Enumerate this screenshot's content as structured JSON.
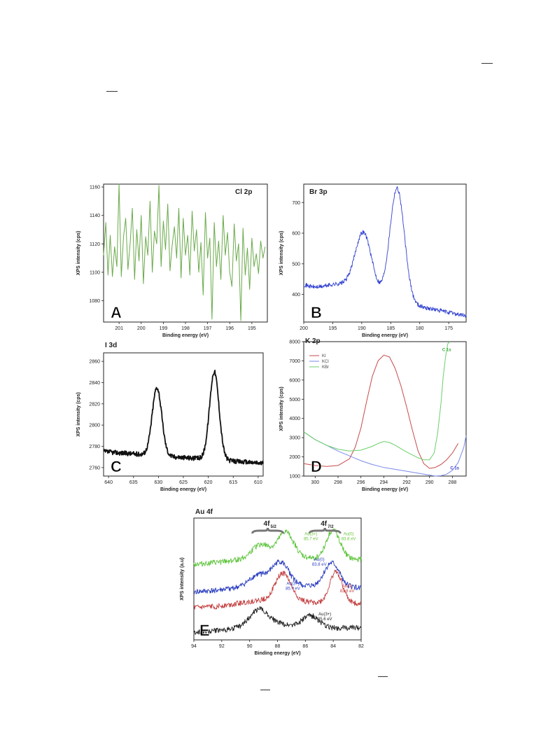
{
  "chart_data": [
    {
      "id": "A",
      "type": "line",
      "title": "Cl 2p",
      "panel_letter": "A",
      "xlabel": "Binding energy (eV)",
      "ylabel": "XPS intensity (cps)",
      "xlim": [
        201.7,
        194.3
      ],
      "ylim": [
        1065,
        1162
      ],
      "xticks": [
        201,
        200,
        199,
        198,
        197,
        196,
        195
      ],
      "yticks": [
        1080,
        1100,
        1120,
        1140,
        1160
      ],
      "series": [
        {
          "color": "#6aaa4a",
          "x": [
            201.7,
            201.6,
            201.5,
            201.4,
            201.3,
            201.2,
            201.1,
            201.0,
            200.9,
            200.8,
            200.7,
            200.6,
            200.5,
            200.4,
            200.3,
            200.2,
            200.1,
            200.0,
            199.9,
            199.8,
            199.7,
            199.6,
            199.5,
            199.4,
            199.3,
            199.2,
            199.1,
            199.0,
            198.9,
            198.8,
            198.7,
            198.6,
            198.5,
            198.4,
            198.3,
            198.2,
            198.1,
            198.0,
            197.9,
            197.8,
            197.7,
            197.6,
            197.5,
            197.4,
            197.3,
            197.2,
            197.1,
            197.0,
            196.9,
            196.8,
            196.7,
            196.6,
            196.5,
            196.4,
            196.3,
            196.2,
            196.1,
            196.0,
            195.9,
            195.8,
            195.7,
            195.6,
            195.5,
            195.4,
            195.3,
            195.2,
            195.1,
            195.0,
            194.9,
            194.8,
            194.7,
            194.6,
            194.5,
            194.4
          ],
          "values": [
            1112,
            1135,
            1098,
            1126,
            1097,
            1118,
            1104,
            1162,
            1097,
            1125,
            1138,
            1102,
            1120,
            1145,
            1095,
            1130,
            1108,
            1140,
            1092,
            1125,
            1112,
            1150,
            1100,
            1129,
            1120,
            1161,
            1104,
            1136,
            1116,
            1148,
            1101,
            1119,
            1132,
            1110,
            1145,
            1096,
            1138,
            1112,
            1126,
            1098,
            1143,
            1115,
            1130,
            1100,
            1121,
            1084,
            1142,
            1110,
            1124,
            1067,
            1135,
            1104,
            1122,
            1095,
            1140,
            1112,
            1128,
            1100,
            1090,
            1134,
            1108,
            1120,
            1066,
            1131,
            1098,
            1117,
            1088,
            1124,
            1104,
            1113,
            1099,
            1122,
            1110,
            1118
          ]
        }
      ]
    },
    {
      "id": "B",
      "type": "line",
      "title": "Br 3p",
      "panel_letter": "B",
      "xlabel": "Binding energy (eV)",
      "ylabel": "XPS intensity (cps)",
      "xlim": [
        200,
        172
      ],
      "ylim": [
        310,
        760
      ],
      "xticks": [
        200,
        195,
        190,
        185,
        180,
        175
      ],
      "yticks": [
        400,
        500,
        600,
        700
      ],
      "peaks": [
        {
          "center": 189.7,
          "height": 190,
          "width": 1.4
        },
        {
          "center": 183.9,
          "height": 370,
          "width": 1.25
        }
      ],
      "baseline": {
        "left": 437,
        "right": 330
      },
      "series": [
        {
          "color": "#2f3fd0"
        }
      ]
    },
    {
      "id": "C",
      "type": "line",
      "title": "I 3d",
      "panel_letter": "C",
      "xlabel": "Binding energy (eV)",
      "ylabel": "XPS intensity (cps)",
      "xlim": [
        641,
        609
      ],
      "ylim": [
        2752,
        2868
      ],
      "xticks": [
        640,
        635,
        630,
        625,
        620,
        615,
        610
      ],
      "yticks": [
        2760,
        2780,
        2800,
        2820,
        2840,
        2860
      ],
      "peaks": [
        {
          "center": 630.3,
          "height": 64,
          "width": 0.95
        },
        {
          "center": 618.8,
          "height": 83,
          "width": 0.95
        }
      ],
      "baseline": {
        "left": 2775,
        "right": 2764
      },
      "series": [
        {
          "color": "#111111"
        }
      ]
    },
    {
      "id": "D",
      "type": "line",
      "title": "K 2p",
      "panel_letter": "D",
      "xlabel": "Binding energy (eV)",
      "ylabel": "XPS intensity (cps)",
      "xlim": [
        301,
        286.8
      ],
      "ylim": [
        1000,
        8000
      ],
      "xticks": [
        300,
        298,
        296,
        294,
        292,
        290,
        288
      ],
      "yticks": [
        1000,
        2000,
        3000,
        4000,
        5000,
        6000,
        7000,
        8000
      ],
      "legend": "top-left",
      "annotations": [
        {
          "text": "C 1s",
          "color": "#3aa83a",
          "x": 288.5,
          "y": 7500
        },
        {
          "text": "C 1s",
          "color": "#3a3ac8",
          "x": 287.8,
          "y": 1350
        }
      ],
      "series": [
        {
          "name": "KI",
          "color": "#c84a4a",
          "x": [
            301,
            300,
            299,
            298,
            297,
            296.5,
            296,
            295.5,
            295,
            294.5,
            294,
            293.5,
            293,
            292.5,
            292,
            291.5,
            291,
            290.5,
            290,
            289.5,
            289,
            288.5,
            288,
            287.5
          ],
          "values": [
            1650,
            1550,
            1500,
            1550,
            1900,
            2500,
            3500,
            4900,
            6200,
            7000,
            7300,
            7200,
            6600,
            5700,
            4600,
            3400,
            2300,
            1650,
            1400,
            1450,
            1600,
            1850,
            2200,
            2700
          ]
        },
        {
          "name": "KCl",
          "color": "#7a8ae8",
          "x": [
            301,
            300,
            299,
            298,
            297,
            296,
            295,
            294,
            293,
            292,
            291,
            290,
            289.5,
            289,
            288.5,
            288,
            287.5,
            287,
            286.8
          ],
          "values": [
            3300,
            2900,
            2600,
            2300,
            2050,
            1800,
            1600,
            1450,
            1350,
            1250,
            1150,
            1050,
            1000,
            1020,
            1100,
            1300,
            1700,
            2500,
            3100
          ]
        },
        {
          "name": "KBr",
          "color": "#6ad06a",
          "x": [
            301,
            300,
            299,
            298,
            297,
            296,
            295,
            294.5,
            294,
            293.5,
            293,
            292,
            291,
            290.5,
            290,
            289.6,
            289.3,
            289,
            288.8,
            288.6,
            288.4,
            288.2
          ],
          "values": [
            3300,
            2900,
            2600,
            2400,
            2300,
            2350,
            2550,
            2700,
            2800,
            2750,
            2600,
            2250,
            1950,
            1850,
            1850,
            2200,
            3200,
            4800,
            6200,
            7200,
            7900,
            8000
          ]
        }
      ]
    },
    {
      "id": "E",
      "type": "line",
      "title": "Au 4f",
      "panel_letter": "E",
      "xlabel": "Binding energy (eV)",
      "ylabel": "XPS intensity (a.u)",
      "xlim": [
        94,
        82
      ],
      "ylim": [
        0,
        1
      ],
      "xticks": [
        94,
        92,
        90,
        88,
        86,
        84,
        82
      ],
      "bracket_labels": [
        {
          "main": "4f",
          "sub": "5/2",
          "x": 88.7
        },
        {
          "main": "4f",
          "sub": "7/2",
          "x": 84.6
        }
      ],
      "annotations": [
        {
          "lines": [
            "Au(3+)",
            "85.7 eV"
          ],
          "color": "#6ac43a",
          "x": 85.6,
          "y": 0.86
        },
        {
          "lines": [
            "Au(0)",
            "83.8 eV"
          ],
          "color": "#6ac43a",
          "x": 82.9,
          "y": 0.86
        },
        {
          "lines": [
            "Au(0)",
            "83.8 eV"
          ],
          "color": "#2b3fc0",
          "x": 85.0,
          "y": 0.65
        },
        {
          "lines": [
            "Au(3+)",
            "85.7 eV"
          ],
          "color": "#2b3fc0",
          "x": 86.9,
          "y": 0.45
        },
        {
          "lines": [
            "Au(0)",
            "83.8 eV"
          ],
          "color": "#c44040",
          "x": 83.0,
          "y": 0.43
        },
        {
          "lines": [
            "Au(3+)",
            "85.6 eV"
          ],
          "color": "#222222",
          "x": 84.6,
          "y": 0.2
        }
      ],
      "series": [
        {
          "color": "#5cc43a",
          "offset": 0.62,
          "peaks": [
            {
              "center": 87.4,
              "height": 0.2,
              "width": 0.55
            },
            {
              "center": 84.0,
              "height": 0.24,
              "width": 0.5
            },
            {
              "center": 89.2,
              "height": 0.1,
              "width": 0.6
            }
          ]
        },
        {
          "color": "#2b3fc0",
          "offset": 0.39,
          "peaks": [
            {
              "center": 87.8,
              "height": 0.18,
              "width": 0.6
            },
            {
              "center": 84.1,
              "height": 0.2,
              "width": 0.55
            },
            {
              "center": 89.4,
              "height": 0.08,
              "width": 0.6
            }
          ]
        },
        {
          "color": "#c44040",
          "offset": 0.26,
          "peaks": [
            {
              "center": 87.6,
              "height": 0.22,
              "width": 0.55
            },
            {
              "center": 83.8,
              "height": 0.26,
              "width": 0.45
            }
          ]
        },
        {
          "color": "#222222",
          "offset": 0.06,
          "peaks": [
            {
              "center": 89.3,
              "height": 0.13,
              "width": 0.65
            },
            {
              "center": 85.6,
              "height": 0.09,
              "width": 0.55
            }
          ]
        }
      ]
    }
  ]
}
